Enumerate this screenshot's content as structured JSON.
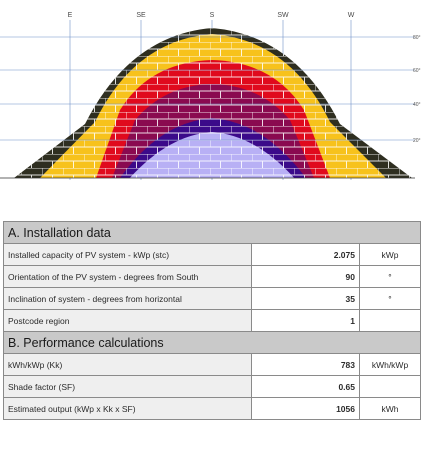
{
  "sunpath": {
    "compass": {
      "east": "E",
      "southeast": "SE",
      "south": "S",
      "southwest": "SW",
      "west": "W"
    },
    "elevation_labels": [
      "80°",
      "60°",
      "40°",
      "20°"
    ],
    "zone_colors": [
      "#2e2e20",
      "#f7c21c",
      "#e00a1d",
      "#8a0a50",
      "#3b0a8a",
      "#b8b0f5"
    ]
  },
  "table": {
    "section_a": {
      "title": "A. Installation data",
      "rows": [
        {
          "label": "Installed capacity of PV system - kWp (stc)",
          "value": "2.075",
          "unit": "kWp"
        },
        {
          "label": "Orientation of the PV system - degrees from South",
          "value": "90",
          "unit": "°"
        },
        {
          "label": "Inclination of system - degrees from horizontal",
          "value": "35",
          "unit": "°"
        },
        {
          "label": "Postcode region",
          "value": "1",
          "unit": ""
        }
      ]
    },
    "section_b": {
      "title": "B. Performance calculations",
      "rows": [
        {
          "label": "kWh/kWp (Kk)",
          "value": "783",
          "unit": "kWh/kWp"
        },
        {
          "label": "Shade factor (SF)",
          "value": "0.65",
          "unit": ""
        },
        {
          "label": "Estimated output (kWp x Kk x SF)",
          "value": "1056",
          "unit": "kWh"
        }
      ]
    }
  }
}
